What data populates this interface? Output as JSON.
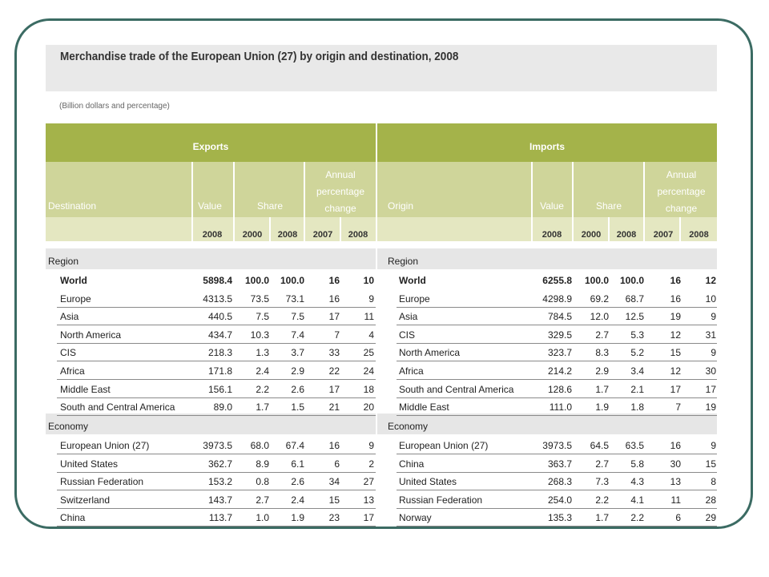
{
  "title": "Merchandise trade of the European Union (27) by origin and destination, 2008",
  "subtitle": "(Billion dollars and percentage)",
  "exports": {
    "header": "Exports",
    "dest_label": "Destination",
    "value_label": "Value",
    "share_label": "Share",
    "change_label": [
      "Annual",
      "percentage",
      "change"
    ],
    "years": [
      "2008",
      "2000",
      "2008",
      "2007",
      "2008"
    ],
    "region_label": "Region",
    "region_rows": [
      {
        "name": "World",
        "value": "5898.4",
        "s2000": "100.0",
        "s2008": "100.0",
        "c2007": "16",
        "c2008": "10",
        "bold": true
      },
      {
        "name": "Europe",
        "value": "4313.5",
        "s2000": "73.5",
        "s2008": "73.1",
        "c2007": "16",
        "c2008": "9"
      },
      {
        "name": "Asia",
        "value": "440.5",
        "s2000": "7.5",
        "s2008": "7.5",
        "c2007": "17",
        "c2008": "11"
      },
      {
        "name": "North America",
        "value": "434.7",
        "s2000": "10.3",
        "s2008": "7.4",
        "c2007": "7",
        "c2008": "4"
      },
      {
        "name": "CIS",
        "value": "218.3",
        "s2000": "1.3",
        "s2008": "3.7",
        "c2007": "33",
        "c2008": "25"
      },
      {
        "name": "Africa",
        "value": "171.8",
        "s2000": "2.4",
        "s2008": "2.9",
        "c2007": "22",
        "c2008": "24"
      },
      {
        "name": "Middle East",
        "value": "156.1",
        "s2000": "2.2",
        "s2008": "2.6",
        "c2007": "17",
        "c2008": "18"
      },
      {
        "name": "South and Central America",
        "value": "89.0",
        "s2000": "1.7",
        "s2008": "1.5",
        "c2007": "21",
        "c2008": "20"
      }
    ],
    "economy_label": "Economy",
    "economy_rows": [
      {
        "name": "European Union (27)",
        "value": "3973.5",
        "s2000": "68.0",
        "s2008": "67.4",
        "c2007": "16",
        "c2008": "9"
      },
      {
        "name": "United States",
        "value": "362.7",
        "s2000": "8.9",
        "s2008": "6.1",
        "c2007": "6",
        "c2008": "2"
      },
      {
        "name": "Russian Federation",
        "value": "153.2",
        "s2000": "0.8",
        "s2008": "2.6",
        "c2007": "34",
        "c2008": "27"
      },
      {
        "name": "Switzerland",
        "value": "143.7",
        "s2000": "2.7",
        "s2008": "2.4",
        "c2007": "15",
        "c2008": "13"
      },
      {
        "name": "China",
        "value": "113.7",
        "s2000": "1.0",
        "s2008": "1.9",
        "c2007": "23",
        "c2008": "17"
      }
    ]
  },
  "imports": {
    "header": "Imports",
    "origin_label": "Origin",
    "value_label": "Value",
    "share_label": "Share",
    "change_label": [
      "Annual",
      "percentage",
      "change"
    ],
    "years": [
      "2008",
      "2000",
      "2008",
      "2007",
      "2008"
    ],
    "region_label": "Region",
    "region_rows": [
      {
        "name": "World",
        "value": "6255.8",
        "s2000": "100.0",
        "s2008": "100.0",
        "c2007": "16",
        "c2008": "12",
        "bold": true
      },
      {
        "name": "Europe",
        "value": "4298.9",
        "s2000": "69.2",
        "s2008": "68.7",
        "c2007": "16",
        "c2008": "10"
      },
      {
        "name": "Asia",
        "value": "784.5",
        "s2000": "12.0",
        "s2008": "12.5",
        "c2007": "19",
        "c2008": "9"
      },
      {
        "name": "CIS",
        "value": "329.5",
        "s2000": "2.7",
        "s2008": "5.3",
        "c2007": "12",
        "c2008": "31"
      },
      {
        "name": "North America",
        "value": "323.7",
        "s2000": "8.3",
        "s2008": "5.2",
        "c2007": "15",
        "c2008": "9"
      },
      {
        "name": "Africa",
        "value": "214.2",
        "s2000": "2.9",
        "s2008": "3.4",
        "c2007": "12",
        "c2008": "30"
      },
      {
        "name": "South and Central America",
        "value": "128.6",
        "s2000": "1.7",
        "s2008": "2.1",
        "c2007": "17",
        "c2008": "17"
      },
      {
        "name": "Middle East",
        "value": "111.0",
        "s2000": "1.9",
        "s2008": "1.8",
        "c2007": "7",
        "c2008": "19"
      }
    ],
    "economy_label": "Economy",
    "economy_rows": [
      {
        "name": "European Union (27)",
        "value": "3973.5",
        "s2000": "64.5",
        "s2008": "63.5",
        "c2007": "16",
        "c2008": "9"
      },
      {
        "name": "China",
        "value": "363.7",
        "s2000": "2.7",
        "s2008": "5.8",
        "c2007": "30",
        "c2008": "15"
      },
      {
        "name": "United States",
        "value": "268.3",
        "s2000": "7.3",
        "s2008": "4.3",
        "c2007": "13",
        "c2008": "8"
      },
      {
        "name": "Russian Federation",
        "value": "254.0",
        "s2000": "2.2",
        "s2008": "4.1",
        "c2007": "11",
        "c2008": "28"
      },
      {
        "name": "Norway",
        "value": "135.3",
        "s2000": "1.7",
        "s2008": "2.2",
        "c2007": "6",
        "c2008": "29"
      }
    ]
  }
}
